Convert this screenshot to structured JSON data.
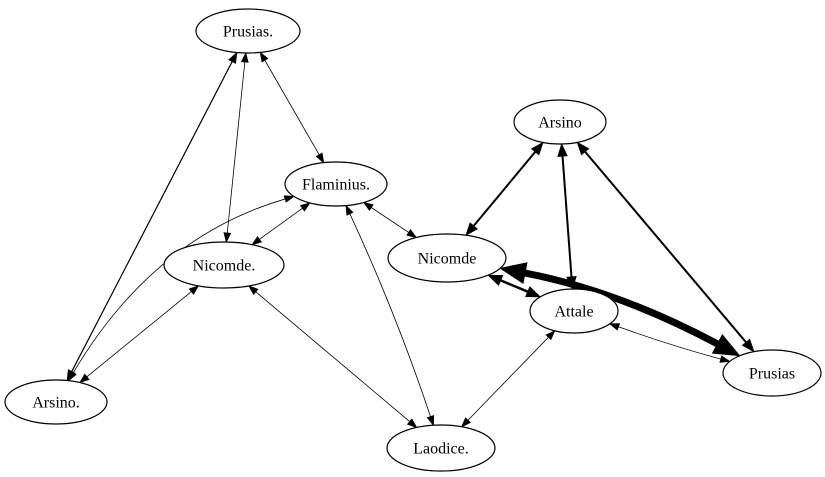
{
  "diagram": {
    "type": "directed-graph",
    "nodes": [
      {
        "id": "prusias_dot",
        "label": "Prusias."
      },
      {
        "id": "flaminius",
        "label": "Flaminius."
      },
      {
        "id": "nicomde_dot",
        "label": "Nicomde."
      },
      {
        "id": "arsino_dot",
        "label": "Arsino."
      },
      {
        "id": "laodice",
        "label": "Laodice."
      },
      {
        "id": "arsino",
        "label": "Arsino"
      },
      {
        "id": "nicomde",
        "label": "Nicomde"
      },
      {
        "id": "attale",
        "label": "Attale"
      },
      {
        "id": "prusias",
        "label": "Prusias"
      }
    ],
    "edges": [
      {
        "from": "prusias_dot",
        "to": "arsino_dot",
        "weight": 1.2,
        "bidirectional": true
      },
      {
        "from": "prusias_dot",
        "to": "nicomde_dot",
        "weight": 0.8,
        "bidirectional": true
      },
      {
        "from": "prusias_dot",
        "to": "flaminius",
        "weight": 0.8,
        "bidirectional": true
      },
      {
        "from": "flaminius",
        "to": "nicomde_dot",
        "weight": 0.8,
        "bidirectional": true
      },
      {
        "from": "flaminius",
        "to": "nicomde",
        "weight": 0.8,
        "bidirectional": true
      },
      {
        "from": "flaminius",
        "to": "arsino_dot",
        "weight": 0.8,
        "bidirectional": true
      },
      {
        "from": "flaminius",
        "to": "laodice",
        "weight": 0.8,
        "bidirectional": true
      },
      {
        "from": "nicomde_dot",
        "to": "arsino_dot",
        "weight": 0.8,
        "bidirectional": true
      },
      {
        "from": "nicomde_dot",
        "to": "laodice",
        "weight": 0.8,
        "bidirectional": true
      },
      {
        "from": "arsino",
        "to": "nicomde",
        "weight": 2,
        "bidirectional": true
      },
      {
        "from": "arsino",
        "to": "attale",
        "weight": 2,
        "bidirectional": true
      },
      {
        "from": "arsino",
        "to": "prusias",
        "weight": 2,
        "bidirectional": true
      },
      {
        "from": "nicomde",
        "to": "attale",
        "weight": 2.5,
        "bidirectional": true
      },
      {
        "from": "nicomde",
        "to": "prusias",
        "weight": 7,
        "bidirectional": true
      },
      {
        "from": "attale",
        "to": "prusias",
        "weight": 0.8,
        "bidirectional": true
      },
      {
        "from": "attale",
        "to": "laodice",
        "weight": 0.8,
        "bidirectional": true
      }
    ]
  }
}
